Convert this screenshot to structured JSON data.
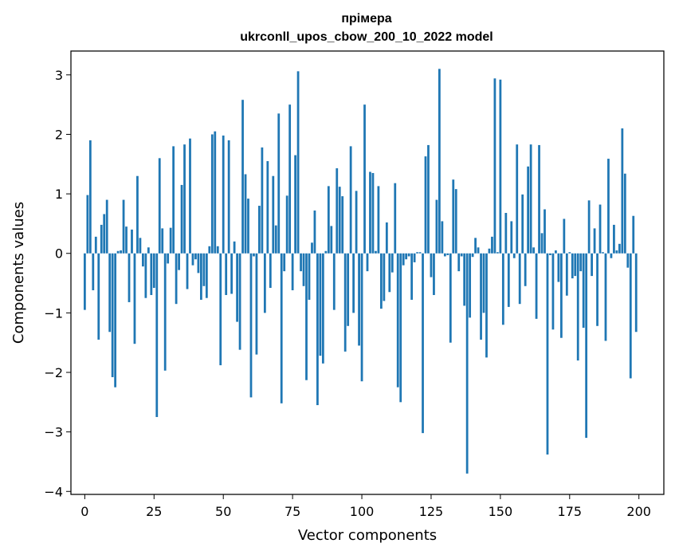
{
  "chart_data": {
    "type": "bar",
    "title_line1": "прімера",
    "title_line2": "ukrconll_upos_cbow_200_10_2022 model",
    "xlabel": "Vector components",
    "ylabel": "Components values",
    "xlim": [
      -5,
      209
    ],
    "ylim": [
      -4.05,
      3.4
    ],
    "xticks": [
      0,
      25,
      50,
      75,
      100,
      125,
      150,
      175,
      200
    ],
    "yticks": [
      -4,
      -3,
      -2,
      -1,
      0,
      1,
      2,
      3
    ],
    "color": "#1f77b4",
    "values": [
      -0.95,
      0.98,
      1.9,
      -0.62,
      0.28,
      -1.45,
      0.48,
      0.66,
      0.9,
      -1.32,
      -2.08,
      -2.25,
      0.04,
      0.05,
      0.9,
      0.45,
      -0.82,
      0.4,
      -1.52,
      1.3,
      0.26,
      -0.22,
      -0.75,
      0.1,
      -0.7,
      -0.58,
      -2.75,
      1.6,
      0.42,
      -1.97,
      -0.17,
      0.43,
      1.8,
      -0.85,
      -0.28,
      1.15,
      1.83,
      -0.6,
      1.93,
      -0.2,
      -0.1,
      -0.33,
      -0.78,
      -0.55,
      -0.75,
      0.12,
      2.0,
      2.05,
      0.12,
      -1.88,
      1.98,
      -0.7,
      1.9,
      -0.68,
      0.2,
      -1.15,
      -1.62,
      2.58,
      1.33,
      0.92,
      -2.42,
      -0.05,
      -1.7,
      0.8,
      1.78,
      -1.0,
      1.55,
      -0.58,
      1.3,
      0.47,
      2.35,
      -2.52,
      -0.3,
      0.97,
      2.5,
      -0.62,
      1.65,
      3.06,
      -0.3,
      -0.55,
      -2.13,
      -0.78,
      0.18,
      0.72,
      -2.55,
      -1.72,
      -1.85,
      0.04,
      1.13,
      0.46,
      -0.95,
      1.43,
      1.12,
      0.96,
      -1.65,
      -1.22,
      1.8,
      -1.0,
      1.05,
      -1.55,
      -2.15,
      2.5,
      -0.3,
      1.37,
      1.35,
      0.04,
      1.13,
      -0.93,
      -0.8,
      0.52,
      -0.65,
      -0.32,
      1.18,
      -2.25,
      -2.5,
      -0.2,
      -0.1,
      -0.05,
      -0.78,
      -0.15,
      0.02,
      0.02,
      -3.02,
      1.63,
      1.82,
      -0.4,
      -0.7,
      0.9,
      3.1,
      0.54,
      -0.05,
      -0.03,
      -1.5,
      1.24,
      1.08,
      -0.3,
      -0.05,
      -0.88,
      -3.7,
      -1.08,
      -0.06,
      0.26,
      0.1,
      -1.45,
      -1.0,
      -1.75,
      0.08,
      0.28,
      2.94,
      0.02,
      2.92,
      -1.2,
      0.68,
      -0.9,
      0.54,
      -0.08,
      1.83,
      -0.85,
      0.99,
      -0.55,
      1.46,
      1.83,
      0.1,
      -1.1,
      1.82,
      0.34,
      0.74,
      -3.38,
      -0.03,
      -1.28,
      0.05,
      -0.48,
      -1.42,
      0.58,
      -0.71,
      0.02,
      -0.42,
      -0.38,
      -1.8,
      -0.3,
      -1.25,
      -3.1,
      0.89,
      -0.38,
      0.42,
      -1.22,
      0.82,
      0.02,
      -1.47,
      1.59,
      -0.08,
      0.48,
      0.05,
      0.16,
      2.1,
      1.34,
      -0.24,
      -2.1,
      0.63,
      -1.32
    ]
  }
}
